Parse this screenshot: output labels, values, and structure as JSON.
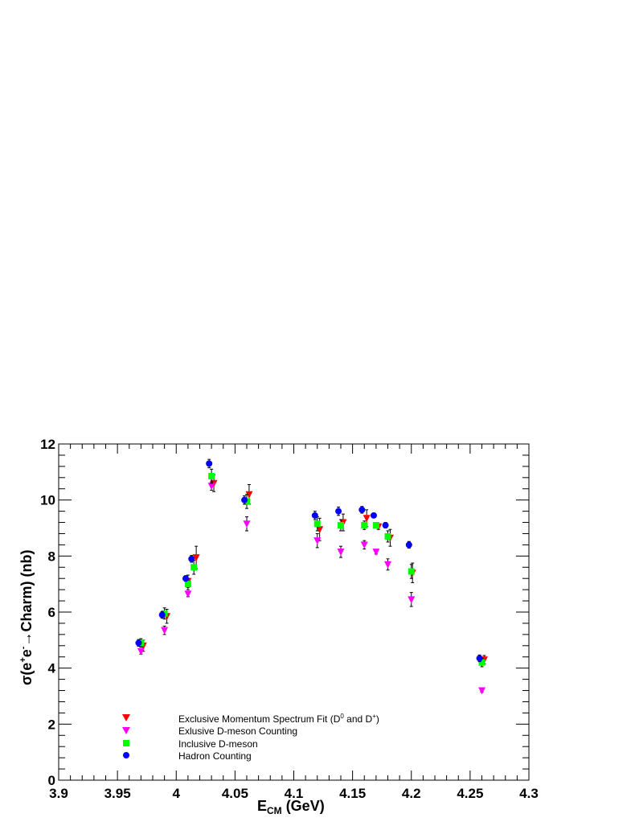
{
  "chart_data": {
    "type": "scatter",
    "title": "",
    "xlabel_main": "E",
    "xlabel_sub": "CM",
    "xlabel_unit": " (GeV)",
    "ylabel_prefix": "σ(e",
    "ylabel_sup1": "+",
    "ylabel_mid": "e",
    "ylabel_sup2": "-",
    "ylabel_suffix": "→Charm) (nb)",
    "xlim": [
      3.9,
      4.3
    ],
    "ylim": [
      0,
      12
    ],
    "x_ticks": [
      "3.9",
      "3.95",
      "4",
      "4.05",
      "4.1",
      "4.15",
      "4.2",
      "4.25",
      "4.3"
    ],
    "y_ticks": [
      "0",
      "2",
      "4",
      "6",
      "8",
      "10",
      "12"
    ],
    "grid": false,
    "legend_position": "bottom-left",
    "series": [
      {
        "name": "Exclusive Momentum Spectrum Fit (D0 and D+)",
        "legend_pre": "Exclusive Momentum Spectrum Fit (D",
        "legend_sup1": "0",
        "legend_mid": " and D",
        "legend_sup2": "+",
        "legend_post": ")",
        "marker": "triangle-down",
        "color": "#ff0000",
        "points": [
          {
            "x": 3.972,
            "y": 4.8,
            "err": 0.2
          },
          {
            "x": 3.992,
            "y": 5.85,
            "err": 0.25
          },
          {
            "x": 4.01,
            "y": 7.1,
            "err": 0.22
          },
          {
            "x": 4.017,
            "y": 7.95,
            "err": 0.4
          },
          {
            "x": 4.032,
            "y": 10.6,
            "err": 0.3
          },
          {
            "x": 4.062,
            "y": 10.2,
            "err": 0.35
          },
          {
            "x": 4.122,
            "y": 8.95,
            "err": 0.4
          },
          {
            "x": 4.142,
            "y": 9.2,
            "err": 0.3
          },
          {
            "x": 4.162,
            "y": 9.35,
            "err": 0.3
          },
          {
            "x": 4.172,
            "y": 9.05,
            "err": 0.1
          },
          {
            "x": 4.182,
            "y": 8.65,
            "err": 0.3
          },
          {
            "x": 4.201,
            "y": 7.4,
            "err": 0.35
          },
          {
            "x": 4.262,
            "y": 4.3,
            "err": 0.15
          }
        ]
      },
      {
        "name": "Exlusive D-meson Counting",
        "marker": "triangle-down",
        "color": "#ff00ff",
        "points": [
          {
            "x": 3.97,
            "y": 4.6,
            "err": 0.1
          },
          {
            "x": 3.99,
            "y": 5.35,
            "err": 0.15
          },
          {
            "x": 4.01,
            "y": 6.65,
            "err": 0.1
          },
          {
            "x": 4.03,
            "y": 10.5,
            "err": 0.15
          },
          {
            "x": 4.06,
            "y": 9.15,
            "err": 0.25
          },
          {
            "x": 4.12,
            "y": 8.55,
            "err": 0.25
          },
          {
            "x": 4.14,
            "y": 8.15,
            "err": 0.2
          },
          {
            "x": 4.16,
            "y": 8.4,
            "err": 0.15
          },
          {
            "x": 4.17,
            "y": 8.15,
            "err": 0.08
          },
          {
            "x": 4.18,
            "y": 7.7,
            "err": 0.2
          },
          {
            "x": 4.2,
            "y": 6.45,
            "err": 0.25
          },
          {
            "x": 4.26,
            "y": 3.2,
            "err": 0.06
          }
        ]
      },
      {
        "name": "Inclusive D-meson",
        "marker": "square",
        "color": "#00ff00",
        "points": [
          {
            "x": 3.97,
            "y": 4.9,
            "err": 0.15
          },
          {
            "x": 3.99,
            "y": 5.95,
            "err": 0.2
          },
          {
            "x": 4.01,
            "y": 7.0,
            "err": 0.2
          },
          {
            "x": 4.015,
            "y": 7.6,
            "err": 0.25
          },
          {
            "x": 4.03,
            "y": 10.85,
            "err": 0.25
          },
          {
            "x": 4.06,
            "y": 9.95,
            "err": 0.25
          },
          {
            "x": 4.12,
            "y": 9.15,
            "err": 0.25
          },
          {
            "x": 4.14,
            "y": 9.1,
            "err": 0.2
          },
          {
            "x": 4.16,
            "y": 9.1,
            "err": 0.15
          },
          {
            "x": 4.17,
            "y": 9.1,
            "err": 0.1
          },
          {
            "x": 4.18,
            "y": 8.7,
            "err": 0.2
          },
          {
            "x": 4.2,
            "y": 7.45,
            "err": 0.25
          },
          {
            "x": 4.26,
            "y": 4.2,
            "err": 0.15
          }
        ]
      },
      {
        "name": "Hadron Counting",
        "marker": "circle",
        "color": "#0000ff",
        "points": [
          {
            "x": 3.968,
            "y": 4.9,
            "err": 0.12
          },
          {
            "x": 3.988,
            "y": 5.9,
            "err": 0.12
          },
          {
            "x": 4.008,
            "y": 7.2,
            "err": 0.1
          },
          {
            "x": 4.013,
            "y": 7.9,
            "err": 0.12
          },
          {
            "x": 4.028,
            "y": 11.3,
            "err": 0.15
          },
          {
            "x": 4.058,
            "y": 10.0,
            "err": 0.15
          },
          {
            "x": 4.118,
            "y": 9.45,
            "err": 0.15
          },
          {
            "x": 4.138,
            "y": 9.6,
            "err": 0.15
          },
          {
            "x": 4.158,
            "y": 9.65,
            "err": 0.12
          },
          {
            "x": 4.168,
            "y": 9.45,
            "err": 0.08
          },
          {
            "x": 4.178,
            "y": 9.1,
            "err": 0.1
          },
          {
            "x": 4.198,
            "y": 8.4,
            "err": 0.12
          },
          {
            "x": 4.258,
            "y": 4.35,
            "err": 0.12
          }
        ]
      }
    ]
  }
}
